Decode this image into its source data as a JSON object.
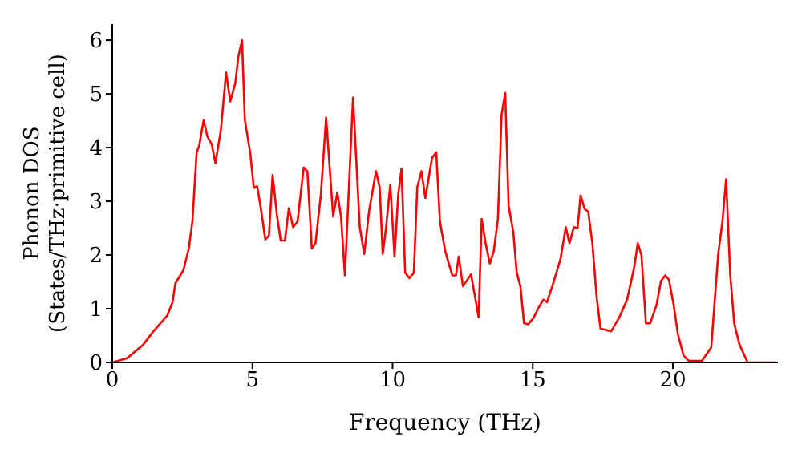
{
  "chart_data": {
    "type": "line",
    "xlabel": "Frequency (THz)",
    "ylabel": "Phonon DOS\n(States/THz·primitive cell)",
    "x": [
      0,
      0.53,
      1.1,
      1.47,
      1.96,
      2.15,
      2.25,
      2.54,
      2.73,
      2.86,
      3.01,
      3.1,
      3.26,
      3.39,
      3.55,
      3.68,
      3.87,
      4.06,
      4.21,
      4.39,
      4.5,
      4.63,
      4.73,
      4.92,
      5.05,
      5.17,
      5.3,
      5.46,
      5.59,
      5.72,
      5.88,
      6.01,
      6.16,
      6.3,
      6.45,
      6.61,
      6.83,
      6.96,
      7.12,
      7.25,
      7.44,
      7.63,
      7.88,
      8.03,
      8.16,
      8.3,
      8.59,
      8.83,
      8.99,
      9.16,
      9.41,
      9.54,
      9.65,
      9.77,
      9.92,
      10.07,
      10.2,
      10.32,
      10.45,
      10.6,
      10.76,
      10.88,
      11.03,
      11.17,
      11.41,
      11.56,
      11.69,
      11.88,
      12.13,
      12.26,
      12.36,
      12.51,
      12.8,
      13.07,
      13.18,
      13.32,
      13.47,
      13.61,
      13.76,
      13.89,
      14.02,
      14.14,
      14.31,
      14.43,
      14.56,
      14.69,
      14.84,
      15.03,
      15.22,
      15.38,
      15.51,
      15.7,
      15.99,
      16.18,
      16.31,
      16.47,
      16.6,
      16.71,
      16.85,
      16.98,
      17.13,
      17.28,
      17.42,
      17.8,
      18.08,
      18.37,
      18.62,
      18.75,
      18.88,
      19.04,
      19.19,
      19.42,
      19.58,
      19.73,
      19.86,
      20.03,
      20.18,
      20.38,
      20.57,
      21.04,
      21.37,
      21.62,
      21.77,
      21.9,
      22.05,
      22.19,
      22.38,
      22.67,
      23.73
    ],
    "series": [
      {
        "color": "#ff0000",
        "values": [
          0,
          0.08,
          0.33,
          0.58,
          0.87,
          1.12,
          1.47,
          1.72,
          2.12,
          2.63,
          3.91,
          4.03,
          4.51,
          4.21,
          4.06,
          3.71,
          4.31,
          5.4,
          4.86,
          5.2,
          5.7,
          6.0,
          4.51,
          3.91,
          3.25,
          3.28,
          2.87,
          2.29,
          2.36,
          3.49,
          2.72,
          2.27,
          2.27,
          2.87,
          2.52,
          2.62,
          3.63,
          3.56,
          2.12,
          2.22,
          3.11,
          4.56,
          2.72,
          3.16,
          2.72,
          1.62,
          4.93,
          2.52,
          2.02,
          2.81,
          3.56,
          3.26,
          2.02,
          2.52,
          3.31,
          1.97,
          3.11,
          3.61,
          1.67,
          1.57,
          1.67,
          3.26,
          3.56,
          3.06,
          3.81,
          3.91,
          2.62,
          2.07,
          1.62,
          1.62,
          1.97,
          1.42,
          1.64,
          0.84,
          2.67,
          2.22,
          1.84,
          2.07,
          2.67,
          4.61,
          5.02,
          2.92,
          2.42,
          1.67,
          1.42,
          0.73,
          0.71,
          0.83,
          1.03,
          1.17,
          1.12,
          1.42,
          1.92,
          2.52,
          2.22,
          2.52,
          2.5,
          3.11,
          2.86,
          2.81,
          2.22,
          1.22,
          0.63,
          0.58,
          0.83,
          1.17,
          1.77,
          2.22,
          2.0,
          0.73,
          0.73,
          1.07,
          1.52,
          1.62,
          1.54,
          1.07,
          0.53,
          0.13,
          0.03,
          0.03,
          0.28,
          2.02,
          2.62,
          3.41,
          1.62,
          0.73,
          0.33,
          0,
          0
        ]
      }
    ],
    "xlim": [
      0,
      23.75
    ],
    "xticks": [
      0,
      5,
      10,
      15,
      20
    ],
    "ylim": [
      0,
      6.3
    ],
    "yticks": [
      0,
      1,
      2,
      3,
      4,
      5,
      6
    ],
    "grid": false,
    "legend": false,
    "marker": "none",
    "line_style": "solid"
  }
}
